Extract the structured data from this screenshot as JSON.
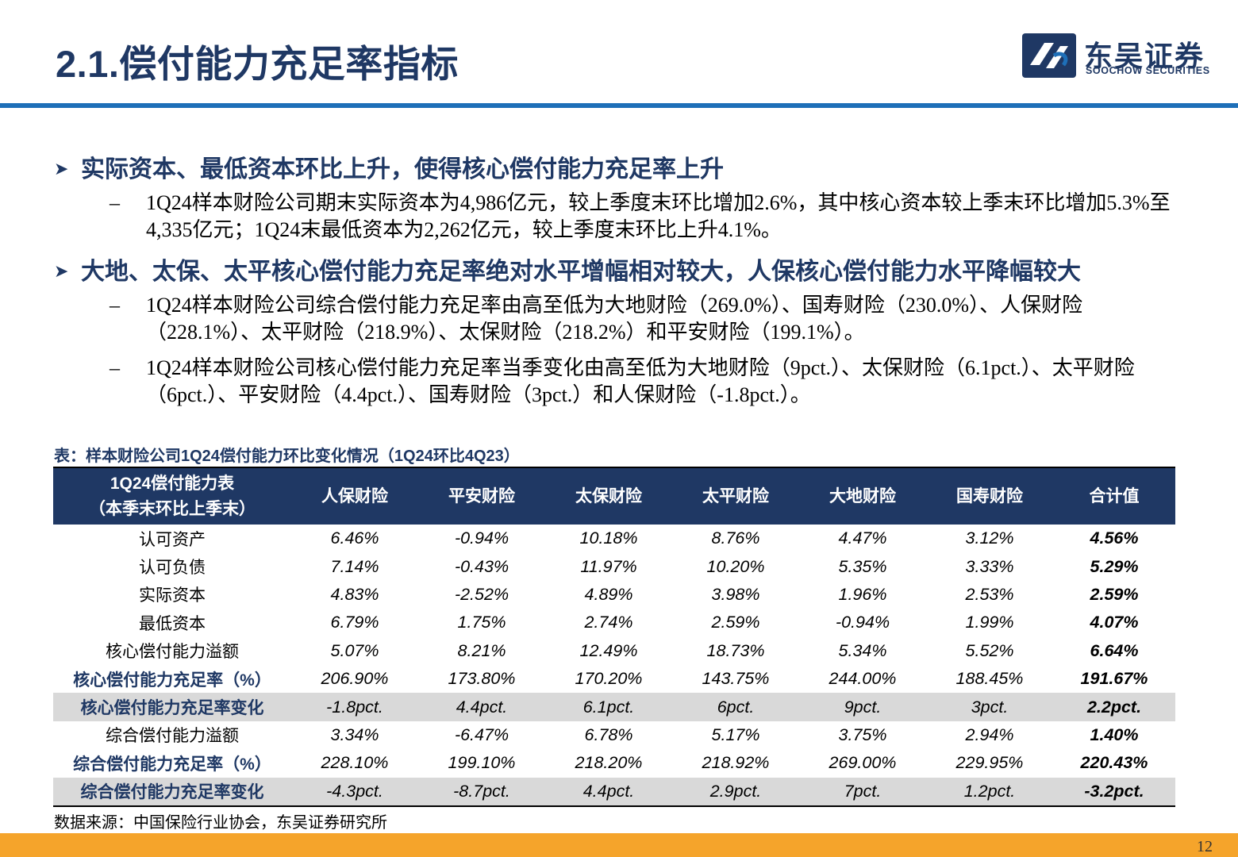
{
  "header": {
    "title": "2.1.偿付能力充足率指标",
    "logo_cn": "东吴证券",
    "logo_en": "SOOCHOW SECURITIES"
  },
  "bullets": [
    {
      "heading": "实际资本、最低资本环比上升，使得核心偿付能力充足率上升",
      "points": [
        "1Q24样本财险公司期末实际资本为4,986亿元，较上季度末环比增加2.6%，其中核心资本较上季末环比增加5.3%至4,335亿元；1Q24末最低资本为2,262亿元，较上季度末环比上升4.1%。"
      ]
    },
    {
      "heading": "大地、太保、太平核心偿付能力充足率绝对水平增幅相对较大，人保核心偿付能力水平降幅较大",
      "points": [
        "1Q24样本财险公司综合偿付能力充足率由高至低为大地财险（269.0%）、国寿财险（230.0%）、人保财险（228.1%）、太平财险（218.9%）、太保财险（218.2%）和平安财险（199.1%）。",
        "1Q24样本财险公司核心偿付能力充足率当季变化由高至低为大地财险（9pct.）、太保财险（6.1pct.）、太平财险（6pct.）、平安财险（4.4pct.）、国寿财险（3pct.）和人保财险（-1.8pct.）。"
      ]
    }
  ],
  "dash": "–",
  "table": {
    "caption": "表：样本财险公司1Q24偿付能力环比变化情况（1Q24环比4Q23）",
    "header_line1": "1Q24偿付能力表",
    "header_line2": "（本季末环比上季末）",
    "columns": [
      "人保财险",
      "平安财险",
      "太保财险",
      "太平财险",
      "大地财险",
      "国寿财险",
      "合计值"
    ],
    "rows": [
      {
        "label": "认可资产",
        "cells": [
          "6.46%",
          "-0.94%",
          "10.18%",
          "8.76%",
          "4.47%",
          "3.12%",
          "4.56%"
        ]
      },
      {
        "label": "认可负债",
        "cells": [
          "7.14%",
          "-0.43%",
          "11.97%",
          "10.20%",
          "5.35%",
          "3.33%",
          "5.29%"
        ]
      },
      {
        "label": "实际资本",
        "cells": [
          "4.83%",
          "-2.52%",
          "4.89%",
          "3.98%",
          "1.96%",
          "2.53%",
          "2.59%"
        ]
      },
      {
        "label": "最低资本",
        "cells": [
          "6.79%",
          "1.75%",
          "2.74%",
          "2.59%",
          "-0.94%",
          "1.99%",
          "4.07%"
        ]
      },
      {
        "label": "核心偿付能力溢额",
        "cells": [
          "5.07%",
          "8.21%",
          "12.49%",
          "18.73%",
          "5.34%",
          "5.52%",
          "6.64%"
        ]
      },
      {
        "label": "核心偿付能力充足率（%）",
        "cells": [
          "206.90%",
          "173.80%",
          "170.20%",
          "143.75%",
          "244.00%",
          "188.45%",
          "191.67%"
        ]
      },
      {
        "label": "核心偿付能力充足率变化",
        "cells": [
          "-1.8pct.",
          "4.4pct.",
          "6.1pct.",
          "6pct.",
          "9pct.",
          "3pct.",
          "2.2pct."
        ]
      },
      {
        "label": "综合偿付能力溢额",
        "cells": [
          "3.34%",
          "-6.47%",
          "6.78%",
          "5.17%",
          "3.75%",
          "2.94%",
          "1.40%"
        ]
      },
      {
        "label": "综合偿付能力充足率（%）",
        "cells": [
          "228.10%",
          "199.10%",
          "218.20%",
          "218.92%",
          "269.00%",
          "229.95%",
          "220.43%"
        ]
      },
      {
        "label": "综合偿付能力充足率变化",
        "cells": [
          "-4.3pct.",
          "-8.7pct.",
          "4.4pct.",
          "2.9pct.",
          "7pct.",
          "1.2pct.",
          "-3.2pct."
        ]
      }
    ]
  },
  "source": "数据来源：中国保险行业协会，东吴证券研究所",
  "page_number": "12",
  "colors": {
    "navy": "#1f3864",
    "blue_rule": "#1e6fb8",
    "orange": "#f5a42b",
    "shade": "#d9d9d9"
  }
}
